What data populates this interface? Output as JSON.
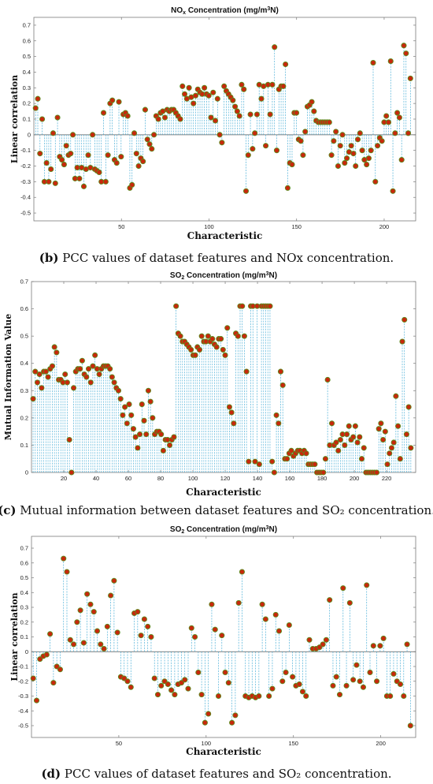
{
  "chart_data": [
    {
      "id": "b",
      "type": "scatter",
      "style": "stem",
      "title_parts": [
        "NO",
        "x",
        " Concentration (mg/m",
        "3",
        "N)"
      ],
      "xlabel": "Characteristic",
      "ylabel": "Linear correlation",
      "xlim": [
        0,
        218
      ],
      "ylim": [
        -0.55,
        0.75
      ],
      "xticks": [
        50,
        100,
        150,
        200
      ],
      "yticks": [
        -0.5,
        -0.4,
        -0.3,
        -0.2,
        -0.1,
        0,
        0.1,
        0.2,
        0.3,
        0.4,
        0.5,
        0.6,
        0.7
      ],
      "ytick_labels": [
        "-0.5",
        "-0.4",
        "-0.3",
        "-0.2",
        "-0.1",
        "0",
        "0.1",
        "0.2",
        "0.3",
        "0.4",
        "0.5",
        "0.6",
        "0.7"
      ],
      "grid": false,
      "baseline": 0,
      "marker_color": "#c8280c",
      "marker_edge": "#5c8a1e",
      "stem_color": "#4fb1d8",
      "caption": {
        "label": "(b)",
        "text": " PCC values of dataset features and NOx concentration."
      },
      "y": [
        0.17,
        0.23,
        -0.12,
        0.1,
        -0.3,
        -0.18,
        -0.3,
        -0.22,
        0.01,
        -0.31,
        0.11,
        -0.14,
        -0.16,
        -0.19,
        -0.07,
        -0.13,
        -0.12,
        0.0,
        -0.28,
        -0.21,
        -0.28,
        -0.21,
        -0.33,
        -0.22,
        -0.13,
        -0.21,
        0.0,
        -0.22,
        -0.23,
        -0.24,
        -0.3,
        0.14,
        -0.3,
        -0.13,
        0.2,
        0.22,
        -0.16,
        -0.18,
        0.21,
        -0.14,
        0.13,
        0.14,
        0.12,
        -0.34,
        -0.32,
        0.01,
        -0.12,
        -0.2,
        -0.15,
        -0.17,
        0.16,
        -0.03,
        -0.06,
        -0.09,
        0.0,
        0.12,
        0.1,
        0.14,
        0.15,
        0.11,
        0.16,
        0.15,
        0.16,
        0.16,
        0.14,
        0.12,
        0.1,
        0.31,
        0.26,
        0.23,
        0.3,
        0.24,
        0.2,
        0.25,
        0.29,
        0.27,
        0.26,
        0.3,
        0.26,
        0.25,
        0.11,
        0.27,
        0.09,
        0.23,
        0.0,
        -0.05,
        0.31,
        0.28,
        0.26,
        0.24,
        0.22,
        0.18,
        0.15,
        0.12,
        0.32,
        0.29,
        -0.36,
        -0.13,
        0.13,
        -0.09,
        0.01,
        0.13,
        0.32,
        0.23,
        0.31,
        -0.07,
        0.32,
        0.13,
        0.32,
        0.56,
        -0.1,
        0.29,
        0.31,
        0.31,
        0.45,
        -0.34,
        -0.18,
        -0.19,
        0.14,
        0.14,
        -0.03,
        -0.04,
        -0.13,
        0.02,
        0.18,
        0.19,
        0.21,
        0.15,
        0.09,
        0.08,
        0.08,
        0.08,
        0.08,
        0.08,
        0.08,
        -0.13,
        -0.04,
        0.02,
        -0.2,
        -0.07,
        0.0,
        -0.18,
        -0.15,
        -0.11,
        -0.07,
        -0.12,
        -0.2,
        -0.03,
        0.01,
        -0.1,
        -0.16,
        -0.19,
        -0.15,
        -0.1,
        0.46,
        -0.3,
        -0.07,
        -0.02,
        -0.04,
        0.08,
        0.12,
        0.08,
        0.47,
        -0.36,
        0.01,
        0.14,
        0.11,
        -0.16,
        0.57,
        0.52,
        0.01,
        0.36
      ]
    },
    {
      "id": "c",
      "type": "scatter",
      "style": "stem",
      "title_parts": [
        "SO",
        "2",
        " Concentration (mg/m",
        "3",
        "N)"
      ],
      "xlabel": "Characteristic",
      "ylabel": "Mutual Information Value",
      "xlim": [
        0,
        238
      ],
      "ylim": [
        0,
        0.7
      ],
      "xticks": [
        20,
        40,
        60,
        80,
        100,
        120,
        140,
        160,
        180,
        200,
        220
      ],
      "yticks": [
        0,
        0.1,
        0.2,
        0.3,
        0.4,
        0.5,
        0.6,
        0.7
      ],
      "ytick_labels": [
        "0",
        "0.1",
        "0.2",
        "0.3",
        "0.4",
        "0.5",
        "0.6",
        "0.7"
      ],
      "grid": false,
      "baseline": 0,
      "marker_color": "#c8280c",
      "marker_edge": "#5c8a1e",
      "stem_color": "#4fb1d8",
      "caption": {
        "label": "(c)",
        "text": " Mutual information between dataset features and SO₂ concentration."
      },
      "y": [
        0.27,
        0.37,
        0.33,
        0.36,
        0.31,
        0.37,
        0.37,
        0.35,
        0.38,
        0.39,
        0.46,
        0.44,
        0.34,
        0.34,
        0.33,
        0.36,
        0.33,
        0.12,
        0.0,
        0.31,
        0.37,
        0.38,
        0.38,
        0.41,
        0.36,
        0.35,
        0.38,
        0.33,
        0.39,
        0.43,
        0.38,
        0.36,
        0.38,
        0.39,
        0.39,
        0.39,
        0.38,
        0.35,
        0.33,
        0.31,
        0.3,
        0.27,
        0.21,
        0.24,
        0.18,
        0.25,
        0.21,
        0.16,
        0.13,
        0.09,
        0.14,
        0.25,
        0.19,
        0.14,
        0.3,
        0.26,
        0.2,
        0.14,
        0.15,
        0.15,
        0.14,
        0.08,
        0.12,
        0.12,
        0.1,
        0.12,
        0.13,
        0.61,
        0.51,
        0.5,
        0.48,
        0.48,
        0.47,
        0.46,
        0.45,
        0.43,
        0.43,
        0.46,
        0.45,
        0.5,
        0.48,
        0.48,
        0.5,
        0.48,
        0.49,
        0.47,
        0.46,
        0.49,
        0.49,
        0.45,
        0.43,
        0.53,
        0.24,
        0.22,
        0.18,
        0.51,
        0.5,
        0.61,
        0.61,
        0.5,
        0.37,
        0.04,
        0.61,
        0.61,
        0.04,
        0.61,
        0.03,
        0.61,
        0.61,
        0.61,
        0.61,
        0.61,
        0.04,
        0.0,
        0.21,
        0.18,
        0.37,
        0.32,
        0.05,
        0.05,
        0.07,
        0.08,
        0.06,
        0.07,
        0.08,
        0.08,
        0.07,
        0.08,
        0.07,
        0.03,
        0.03,
        0.03,
        0.03,
        0.0,
        0.0,
        0.0,
        0.0,
        0.05,
        0.34,
        0.1,
        0.18,
        0.1,
        0.11,
        0.08,
        0.12,
        0.14,
        0.1,
        0.14,
        0.17,
        0.12,
        0.13,
        0.17,
        0.11,
        0.13,
        0.05,
        0.09,
        0.0,
        0.0,
        0.0,
        0.0,
        0.0,
        0.0,
        0.16,
        0.18,
        0.12,
        0.15,
        0.03,
        0.07,
        0.09,
        0.11,
        0.28,
        0.17,
        0.05,
        0.48,
        0.56,
        0.14,
        0.24,
        0.09
      ]
    },
    {
      "id": "d",
      "type": "scatter",
      "style": "stem",
      "title_parts": [
        "SO",
        "2",
        " Concentration (mg/m",
        "3",
        "N)"
      ],
      "xlabel": "Characteristic",
      "ylabel": "Linear correlation",
      "xlim": [
        0,
        220
      ],
      "ylim": [
        -0.58,
        0.78
      ],
      "xticks": [
        50,
        100,
        150,
        200
      ],
      "yticks": [
        -0.5,
        -0.4,
        -0.3,
        -0.2,
        -0.1,
        0,
        0.1,
        0.2,
        0.3,
        0.4,
        0.5,
        0.6,
        0.7
      ],
      "ytick_labels": [
        "-0.5",
        "-0.4",
        "-0.3",
        "-0.2",
        "-0.1",
        "0",
        "0.1",
        "0.2",
        "0.3",
        "0.4",
        "0.5",
        "0.6",
        "0.7"
      ],
      "grid": false,
      "baseline": 0,
      "marker_color": "#c8280c",
      "marker_edge": "#5c8a1e",
      "stem_color": "#4fb1d8",
      "caption": {
        "label": "(d)",
        "text": " PCC values of dataset features and SO₂ concentration."
      },
      "y": [
        -0.18,
        -0.33,
        -0.05,
        -0.03,
        -0.02,
        0.12,
        -0.21,
        -0.1,
        -0.12,
        0.63,
        0.54,
        0.08,
        0.05,
        0.2,
        0.28,
        0.06,
        0.39,
        0.32,
        0.27,
        0.14,
        0.05,
        0.02,
        0.17,
        0.38,
        0.48,
        0.13,
        -0.17,
        -0.18,
        -0.2,
        -0.24,
        0.26,
        0.27,
        0.11,
        0.22,
        0.17,
        0.1,
        -0.18,
        -0.29,
        -0.23,
        -0.2,
        -0.22,
        -0.26,
        -0.29,
        -0.22,
        -0.21,
        -0.19,
        -0.25,
        0.16,
        0.1,
        -0.14,
        -0.29,
        -0.48,
        -0.42,
        0.32,
        0.15,
        -0.3,
        0.11,
        -0.14,
        -0.21,
        -0.48,
        -0.43,
        0.33,
        0.54,
        -0.3,
        -0.31,
        -0.3,
        -0.31,
        -0.3,
        0.32,
        0.22,
        -0.3,
        -0.25,
        0.25,
        0.14,
        -0.2,
        -0.14,
        0.18,
        -0.17,
        -0.23,
        -0.22,
        -0.27,
        -0.3,
        0.08,
        0.02,
        0.02,
        0.03,
        0.05,
        0.08,
        0.35,
        -0.23,
        -0.17,
        -0.29,
        0.43,
        -0.23,
        0.33,
        -0.19,
        -0.09,
        -0.2,
        -0.24,
        0.45,
        -0.14,
        0.04,
        -0.2,
        0.04,
        0.09,
        -0.3,
        -0.3,
        -0.15,
        -0.2,
        -0.22,
        -0.3,
        0.05,
        -0.5
      ]
    }
  ]
}
